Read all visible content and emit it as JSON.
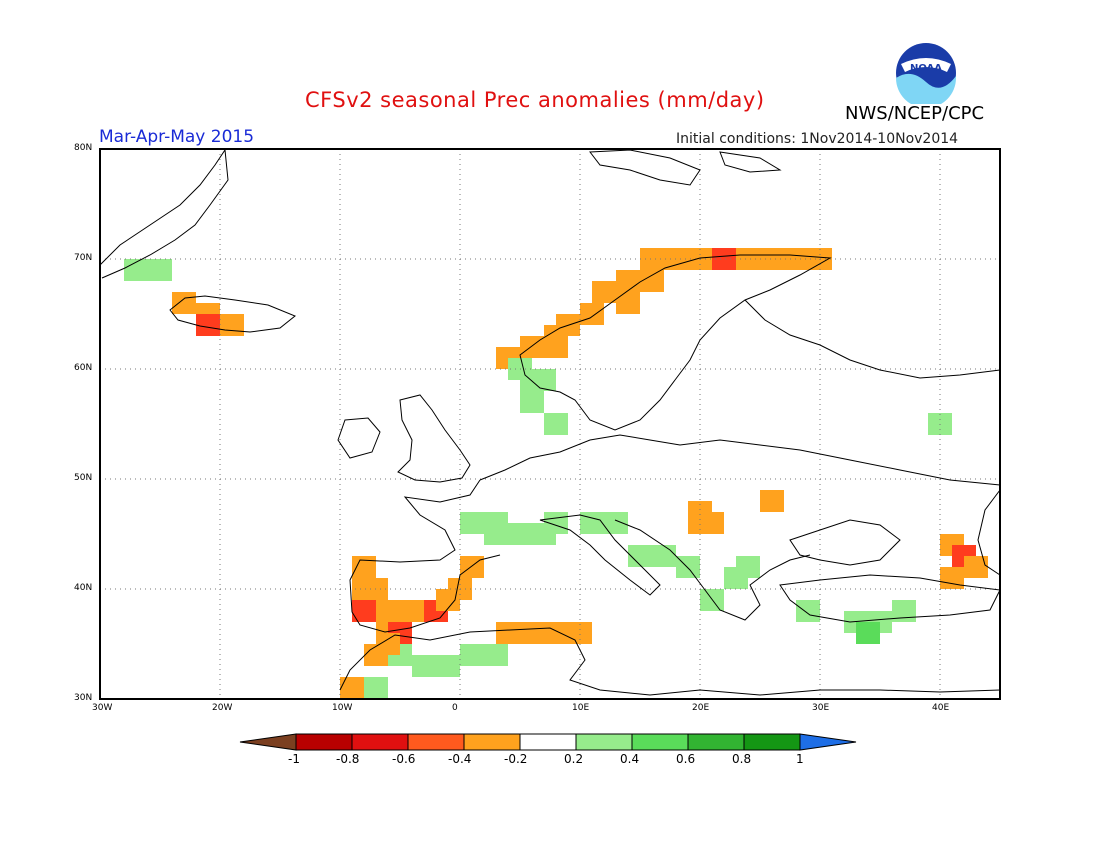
{
  "header": {
    "title": "CFSv2 seasonal Prec anomalies (mm/day)",
    "period": "Mar-Apr-May 2015",
    "initial_conditions": "Initial conditions: 1Nov2014-10Nov2014",
    "org": "NWS/NCEP/CPC",
    "logo_text": "NOAA"
  },
  "map": {
    "lon_range": [
      -30,
      45
    ],
    "lat_range": [
      30,
      80
    ],
    "lon_ticks": [
      "30W",
      "20W",
      "10W",
      "0",
      "10E",
      "20E",
      "30E",
      "40E"
    ],
    "lat_ticks": [
      "30N",
      "40N",
      "50N",
      "60N",
      "70N",
      "80N"
    ],
    "gridlines": "dotted"
  },
  "colorbar": {
    "labels": [
      "-1",
      "-0.8",
      "-0.6",
      "-0.4",
      "-0.2",
      "0.2",
      "0.4",
      "0.6",
      "0.8",
      "1"
    ],
    "colors": [
      "#7b3f20",
      "#b80000",
      "#e01010",
      "#ff5a1e",
      "#ffa21e",
      "#ffffff",
      "#96ec8c",
      "#5adc5a",
      "#32b432",
      "#149614",
      "#1e6ee6"
    ]
  },
  "anomaly_cells": [
    {
      "lon": 16,
      "lat": 70,
      "c": "o"
    },
    {
      "lon": 18,
      "lat": 70,
      "c": "o"
    },
    {
      "lon": 20,
      "lat": 70,
      "c": "o"
    },
    {
      "lon": 22,
      "lat": 70,
      "c": "r"
    },
    {
      "lon": 24,
      "lat": 70,
      "c": "o"
    },
    {
      "lon": 26,
      "lat": 70,
      "c": "o"
    },
    {
      "lon": 28,
      "lat": 70,
      "c": "o"
    },
    {
      "lon": 30,
      "lat": 70,
      "c": "o"
    },
    {
      "lon": 14,
      "lat": 68,
      "c": "o"
    },
    {
      "lon": 16,
      "lat": 68,
      "c": "o"
    },
    {
      "lon": 12,
      "lat": 67,
      "c": "o"
    },
    {
      "lon": 14,
      "lat": 66,
      "c": "o"
    },
    {
      "lon": 11,
      "lat": 65,
      "c": "o"
    },
    {
      "lon": 9,
      "lat": 64,
      "c": "o"
    },
    {
      "lon": 8,
      "lat": 63,
      "c": "o"
    },
    {
      "lon": 6,
      "lat": 62,
      "c": "o"
    },
    {
      "lon": 8,
      "lat": 62,
      "c": "o"
    },
    {
      "lon": 4,
      "lat": 61,
      "c": "o"
    },
    {
      "lon": -23,
      "lat": 66,
      "c": "o"
    },
    {
      "lon": -21,
      "lat": 65,
      "c": "o"
    },
    {
      "lon": -19,
      "lat": 64,
      "c": "o"
    },
    {
      "lon": -21,
      "lat": 64,
      "c": "r"
    },
    {
      "lon": -27,
      "lat": 69,
      "c": "g"
    },
    {
      "lon": -25,
      "lat": 69,
      "c": "g"
    },
    {
      "lon": 5,
      "lat": 60,
      "c": "g"
    },
    {
      "lon": 7,
      "lat": 59,
      "c": "g"
    },
    {
      "lon": 6,
      "lat": 58,
      "c": "g"
    },
    {
      "lon": 6,
      "lat": 57,
      "c": "g"
    },
    {
      "lon": 8,
      "lat": 55,
      "c": "g"
    },
    {
      "lon": 40,
      "lat": 55,
      "c": "g"
    },
    {
      "lon": 1,
      "lat": 46,
      "c": "g"
    },
    {
      "lon": 3,
      "lat": 46,
      "c": "g"
    },
    {
      "lon": 3,
      "lat": 45,
      "c": "g"
    },
    {
      "lon": 5,
      "lat": 45,
      "c": "g"
    },
    {
      "lon": 7,
      "lat": 45,
      "c": "g"
    },
    {
      "lon": 8,
      "lat": 46,
      "c": "g"
    },
    {
      "lon": 11,
      "lat": 46,
      "c": "g"
    },
    {
      "lon": 13,
      "lat": 46,
      "c": "g"
    },
    {
      "lon": 15,
      "lat": 43,
      "c": "g"
    },
    {
      "lon": 17,
      "lat": 43,
      "c": "g"
    },
    {
      "lon": 19,
      "lat": 42,
      "c": "g"
    },
    {
      "lon": 24,
      "lat": 42,
      "c": "g"
    },
    {
      "lon": 23,
      "lat": 41,
      "c": "g"
    },
    {
      "lon": 21,
      "lat": 39,
      "c": "g"
    },
    {
      "lon": 29,
      "lat": 38,
      "c": "g"
    },
    {
      "lon": 33,
      "lat": 37,
      "c": "g"
    },
    {
      "lon": 35,
      "lat": 37,
      "c": "g"
    },
    {
      "lon": 37,
      "lat": 38,
      "c": "g"
    },
    {
      "lon": 34,
      "lat": 36,
      "c": "G"
    },
    {
      "lon": -5,
      "lat": 34,
      "c": "g"
    },
    {
      "lon": -3,
      "lat": 33,
      "c": "g"
    },
    {
      "lon": -1,
      "lat": 33,
      "c": "g"
    },
    {
      "lon": 1,
      "lat": 34,
      "c": "g"
    },
    {
      "lon": 3,
      "lat": 34,
      "c": "g"
    },
    {
      "lon": -7,
      "lat": 31,
      "c": "g"
    },
    {
      "lon": 20,
      "lat": 47,
      "c": "o"
    },
    {
      "lon": 20,
      "lat": 46,
      "c": "o"
    },
    {
      "lon": 21,
      "lat": 46,
      "c": "o"
    },
    {
      "lon": 26,
      "lat": 48,
      "c": "o"
    },
    {
      "lon": -8,
      "lat": 42,
      "c": "o"
    },
    {
      "lon": -8,
      "lat": 40,
      "c": "o"
    },
    {
      "lon": -7,
      "lat": 40,
      "c": "o"
    },
    {
      "lon": -8,
      "lat": 38,
      "c": "r"
    },
    {
      "lon": -6,
      "lat": 38,
      "c": "o"
    },
    {
      "lon": -4,
      "lat": 38,
      "c": "o"
    },
    {
      "lon": -2,
      "lat": 38,
      "c": "r"
    },
    {
      "lon": -1,
      "lat": 39,
      "c": "o"
    },
    {
      "lon": 0,
      "lat": 40,
      "c": "o"
    },
    {
      "lon": 1,
      "lat": 42,
      "c": "o"
    },
    {
      "lon": -6,
      "lat": 37,
      "c": "o"
    },
    {
      "lon": -5,
      "lat": 36,
      "c": "r"
    },
    {
      "lon": -6,
      "lat": 35,
      "c": "o"
    },
    {
      "lon": -7,
      "lat": 34,
      "c": "o"
    },
    {
      "lon": -9,
      "lat": 31,
      "c": "o"
    },
    {
      "lon": 4,
      "lat": 36,
      "c": "o"
    },
    {
      "lon": 6,
      "lat": 36,
      "c": "o"
    },
    {
      "lon": 8,
      "lat": 36,
      "c": "o"
    },
    {
      "lon": 10,
      "lat": 36,
      "c": "o"
    },
    {
      "lon": 41,
      "lat": 44,
      "c": "o"
    },
    {
      "lon": 42,
      "lat": 43,
      "c": "r"
    },
    {
      "lon": 43,
      "lat": 42,
      "c": "o"
    },
    {
      "lon": 41,
      "lat": 41,
      "c": "o"
    }
  ]
}
